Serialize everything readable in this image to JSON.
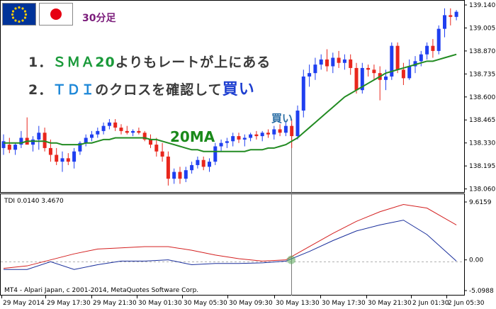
{
  "annotations": {
    "timeframe": "30分足",
    "rule1_prefix": "1．",
    "rule1_sma": "ＳＭＡ20",
    "rule1_rest": "よりもレートが上にある",
    "rule2_prefix": "2．",
    "rule2_tdi": "ＴＤＩ",
    "rule2_mid": "のクロスを確認して",
    "rule2_buy": "買い",
    "ma_label": "20MA",
    "buy_label": "買い",
    "indicator_label": "TDI 0.0140 3.4670",
    "copyright": "MT4 - Alpari Japan, c 2001-2014, MetaQuotes Software Corp."
  },
  "flags": [
    {
      "name": "eu-flag",
      "color_bg": "#003399",
      "color_star": "#ffcc00"
    },
    {
      "name": "jp-flag",
      "color_bg": "#ffffff",
      "color_dot": "#e60012"
    }
  ],
  "colors": {
    "bull": "#1f3ff0",
    "bear": "#e8261c",
    "sma": "#228b22",
    "tdi_red": "#d42020",
    "tdi_blue": "#1a2f9c",
    "title_green": "#1a9a3a",
    "title_blue": "#1e88d8",
    "title_buy": "#1e3fd0"
  },
  "chart_data": [
    {
      "type": "candlestick",
      "title": "",
      "ylim": [
        138.05,
        139.14
      ],
      "y_ticks": [
        "139.140",
        "139.005",
        "138.870",
        "138.735",
        "138.600",
        "138.465",
        "138.330",
        "138.195",
        "138.060"
      ],
      "x_ticks": [
        "29 May 2014",
        "29 May 17:30",
        "29 May 21:30",
        "30 May 01:30",
        "30 May 05:30",
        "30 May 09:30",
        "30 May 13:30",
        "30 May 17:30",
        "30 May 21:30",
        "2 Jun 01:30",
        "2 Jun 05:30"
      ],
      "grid": false,
      "candles": [
        {
          "o": 138.3,
          "h": 138.38,
          "l": 138.26,
          "c": 138.34
        },
        {
          "o": 138.32,
          "h": 138.36,
          "l": 138.27,
          "c": 138.29
        },
        {
          "o": 138.29,
          "h": 138.33,
          "l": 138.26,
          "c": 138.32
        },
        {
          "o": 138.32,
          "h": 138.4,
          "l": 138.3,
          "c": 138.36
        },
        {
          "o": 138.36,
          "h": 138.48,
          "l": 138.33,
          "c": 138.32
        },
        {
          "o": 138.32,
          "h": 138.37,
          "l": 138.28,
          "c": 138.35
        },
        {
          "o": 138.35,
          "h": 138.43,
          "l": 138.29,
          "c": 138.39
        },
        {
          "o": 138.39,
          "h": 138.42,
          "l": 138.28,
          "c": 138.3
        },
        {
          "o": 138.3,
          "h": 138.35,
          "l": 138.22,
          "c": 138.26
        },
        {
          "o": 138.26,
          "h": 138.3,
          "l": 138.2,
          "c": 138.22
        },
        {
          "o": 138.22,
          "h": 138.28,
          "l": 138.16,
          "c": 138.24
        },
        {
          "o": 138.24,
          "h": 138.27,
          "l": 138.2,
          "c": 138.22
        },
        {
          "o": 138.22,
          "h": 138.3,
          "l": 138.18,
          "c": 138.28
        },
        {
          "o": 138.28,
          "h": 138.34,
          "l": 138.26,
          "c": 138.33
        },
        {
          "o": 138.33,
          "h": 138.38,
          "l": 138.31,
          "c": 138.36
        },
        {
          "o": 138.36,
          "h": 138.4,
          "l": 138.34,
          "c": 138.38
        },
        {
          "o": 138.38,
          "h": 138.42,
          "l": 138.36,
          "c": 138.4
        },
        {
          "o": 138.4,
          "h": 138.45,
          "l": 138.38,
          "c": 138.43
        },
        {
          "o": 138.43,
          "h": 138.47,
          "l": 138.41,
          "c": 138.45
        },
        {
          "o": 138.45,
          "h": 138.47,
          "l": 138.4,
          "c": 138.42
        },
        {
          "o": 138.42,
          "h": 138.44,
          "l": 138.38,
          "c": 138.4
        },
        {
          "o": 138.4,
          "h": 138.43,
          "l": 138.38,
          "c": 138.39
        },
        {
          "o": 138.39,
          "h": 138.41,
          "l": 138.37,
          "c": 138.4
        },
        {
          "o": 138.4,
          "h": 138.42,
          "l": 138.38,
          "c": 138.39
        },
        {
          "o": 138.39,
          "h": 138.4,
          "l": 138.34,
          "c": 138.35
        },
        {
          "o": 138.35,
          "h": 138.38,
          "l": 138.3,
          "c": 138.32
        },
        {
          "o": 138.32,
          "h": 138.36,
          "l": 138.25,
          "c": 138.28
        },
        {
          "o": 138.28,
          "h": 138.33,
          "l": 138.22,
          "c": 138.25
        },
        {
          "o": 138.25,
          "h": 138.28,
          "l": 138.08,
          "c": 138.12
        },
        {
          "o": 138.12,
          "h": 138.18,
          "l": 138.09,
          "c": 138.16
        },
        {
          "o": 138.16,
          "h": 138.19,
          "l": 138.09,
          "c": 138.12
        },
        {
          "o": 138.12,
          "h": 138.19,
          "l": 138.1,
          "c": 138.17
        },
        {
          "o": 138.17,
          "h": 138.22,
          "l": 138.15,
          "c": 138.2
        },
        {
          "o": 138.2,
          "h": 138.25,
          "l": 138.18,
          "c": 138.23
        },
        {
          "o": 138.23,
          "h": 138.25,
          "l": 138.17,
          "c": 138.19
        },
        {
          "o": 138.19,
          "h": 138.24,
          "l": 138.16,
          "c": 138.22
        },
        {
          "o": 138.22,
          "h": 138.33,
          "l": 138.2,
          "c": 138.31
        },
        {
          "o": 138.31,
          "h": 138.35,
          "l": 138.28,
          "c": 138.33
        },
        {
          "o": 138.33,
          "h": 138.36,
          "l": 138.3,
          "c": 138.34
        },
        {
          "o": 138.34,
          "h": 138.39,
          "l": 138.31,
          "c": 138.37
        },
        {
          "o": 138.37,
          "h": 138.39,
          "l": 138.33,
          "c": 138.35
        },
        {
          "o": 138.35,
          "h": 138.38,
          "l": 138.31,
          "c": 138.36
        },
        {
          "o": 138.36,
          "h": 138.39,
          "l": 138.34,
          "c": 138.38
        },
        {
          "o": 138.38,
          "h": 138.4,
          "l": 138.35,
          "c": 138.37
        },
        {
          "o": 138.37,
          "h": 138.4,
          "l": 138.34,
          "c": 138.39
        },
        {
          "o": 138.39,
          "h": 138.41,
          "l": 138.36,
          "c": 138.38
        },
        {
          "o": 138.38,
          "h": 138.43,
          "l": 138.35,
          "c": 138.41
        },
        {
          "o": 138.41,
          "h": 138.44,
          "l": 138.37,
          "c": 138.39
        },
        {
          "o": 138.39,
          "h": 138.45,
          "l": 138.37,
          "c": 138.43
        },
        {
          "o": 138.43,
          "h": 138.47,
          "l": 138.3,
          "c": 138.37
        },
        {
          "o": 138.37,
          "h": 138.55,
          "l": 138.35,
          "c": 138.52
        },
        {
          "o": 138.52,
          "h": 138.76,
          "l": 138.48,
          "c": 138.72
        },
        {
          "o": 138.72,
          "h": 138.79,
          "l": 138.66,
          "c": 138.74
        },
        {
          "o": 138.74,
          "h": 138.83,
          "l": 138.7,
          "c": 138.79
        },
        {
          "o": 138.79,
          "h": 138.85,
          "l": 138.76,
          "c": 138.82
        },
        {
          "o": 138.82,
          "h": 138.88,
          "l": 138.75,
          "c": 138.78
        },
        {
          "o": 138.78,
          "h": 138.86,
          "l": 138.74,
          "c": 138.83
        },
        {
          "o": 138.83,
          "h": 138.87,
          "l": 138.77,
          "c": 138.8
        },
        {
          "o": 138.8,
          "h": 138.85,
          "l": 138.76,
          "c": 138.82
        },
        {
          "o": 138.82,
          "h": 138.85,
          "l": 138.73,
          "c": 138.77
        },
        {
          "o": 138.77,
          "h": 138.8,
          "l": 138.62,
          "c": 138.64
        },
        {
          "o": 138.64,
          "h": 138.8,
          "l": 138.62,
          "c": 138.77
        },
        {
          "o": 138.77,
          "h": 138.79,
          "l": 138.72,
          "c": 138.76
        },
        {
          "o": 138.76,
          "h": 138.79,
          "l": 138.7,
          "c": 138.74
        },
        {
          "o": 138.74,
          "h": 138.78,
          "l": 138.58,
          "c": 138.7
        },
        {
          "o": 138.7,
          "h": 138.76,
          "l": 138.64,
          "c": 138.72
        },
        {
          "o": 138.72,
          "h": 138.92,
          "l": 138.7,
          "c": 138.9
        },
        {
          "o": 138.9,
          "h": 138.92,
          "l": 138.74,
          "c": 138.76
        },
        {
          "o": 138.76,
          "h": 138.8,
          "l": 138.67,
          "c": 138.71
        },
        {
          "o": 138.71,
          "h": 138.82,
          "l": 138.7,
          "c": 138.78
        },
        {
          "o": 138.78,
          "h": 138.84,
          "l": 138.74,
          "c": 138.81
        },
        {
          "o": 138.81,
          "h": 138.87,
          "l": 138.78,
          "c": 138.85
        },
        {
          "o": 138.85,
          "h": 138.92,
          "l": 138.82,
          "c": 138.9
        },
        {
          "o": 138.9,
          "h": 138.94,
          "l": 138.83,
          "c": 138.87
        },
        {
          "o": 138.87,
          "h": 139.02,
          "l": 138.85,
          "c": 139.0
        },
        {
          "o": 139.0,
          "h": 139.12,
          "l": 138.95,
          "c": 139.08
        },
        {
          "o": 139.08,
          "h": 139.12,
          "l": 139.02,
          "c": 139.07
        },
        {
          "o": 139.07,
          "h": 139.11,
          "l": 139.05,
          "c": 139.1
        }
      ],
      "sma20": [
        138.33,
        138.33,
        138.33,
        138.33,
        138.34,
        138.34,
        138.34,
        138.34,
        138.33,
        138.33,
        138.32,
        138.32,
        138.32,
        138.32,
        138.33,
        138.33,
        138.34,
        138.35,
        138.35,
        138.36,
        138.36,
        138.36,
        138.36,
        138.36,
        138.36,
        138.35,
        138.35,
        138.34,
        138.33,
        138.32,
        138.31,
        138.3,
        138.29,
        138.29,
        138.28,
        138.28,
        138.28,
        138.28,
        138.28,
        138.28,
        138.28,
        138.28,
        138.29,
        138.29,
        138.29,
        138.3,
        138.3,
        138.31,
        138.32,
        138.34,
        138.36,
        138.39,
        138.42,
        138.45,
        138.48,
        138.51,
        138.54,
        138.57,
        138.6,
        138.62,
        138.64,
        138.66,
        138.68,
        138.7,
        138.72,
        138.74,
        138.75,
        138.76,
        138.77,
        138.78,
        138.79,
        138.8,
        138.81,
        138.81,
        138.82,
        138.83,
        138.84,
        138.85
      ]
    },
    {
      "type": "line",
      "title": "TDI 0.0140 3.4670",
      "ylim": [
        -5.0988,
        9.6159
      ],
      "y_ticks": [
        "9.6159",
        "0.00",
        "-5.0988"
      ],
      "x": [
        0,
        4,
        8,
        12,
        16,
        20,
        24,
        28,
        32,
        36,
        40,
        44,
        48,
        52,
        56,
        60,
        64,
        68,
        72,
        77
      ],
      "series": [
        {
          "values": [
            -1.4,
            -1.0,
            0.0,
            1.0,
            1.8,
            2.0,
            2.2,
            2.2,
            1.6,
            0.8,
            0.2,
            -0.2,
            0.0,
            2.2,
            4.4,
            6.4,
            8.0,
            9.2,
            8.6,
            5.8
          ]
        },
        {
          "values": [
            -1.6,
            -1.6,
            -0.3,
            -1.6,
            -0.8,
            -0.2,
            -0.2,
            0.0,
            -0.8,
            -0.6,
            -0.6,
            -0.5,
            -0.2,
            1.4,
            3.2,
            4.8,
            5.8,
            6.6,
            4.2,
            -0.2
          ]
        }
      ]
    }
  ]
}
